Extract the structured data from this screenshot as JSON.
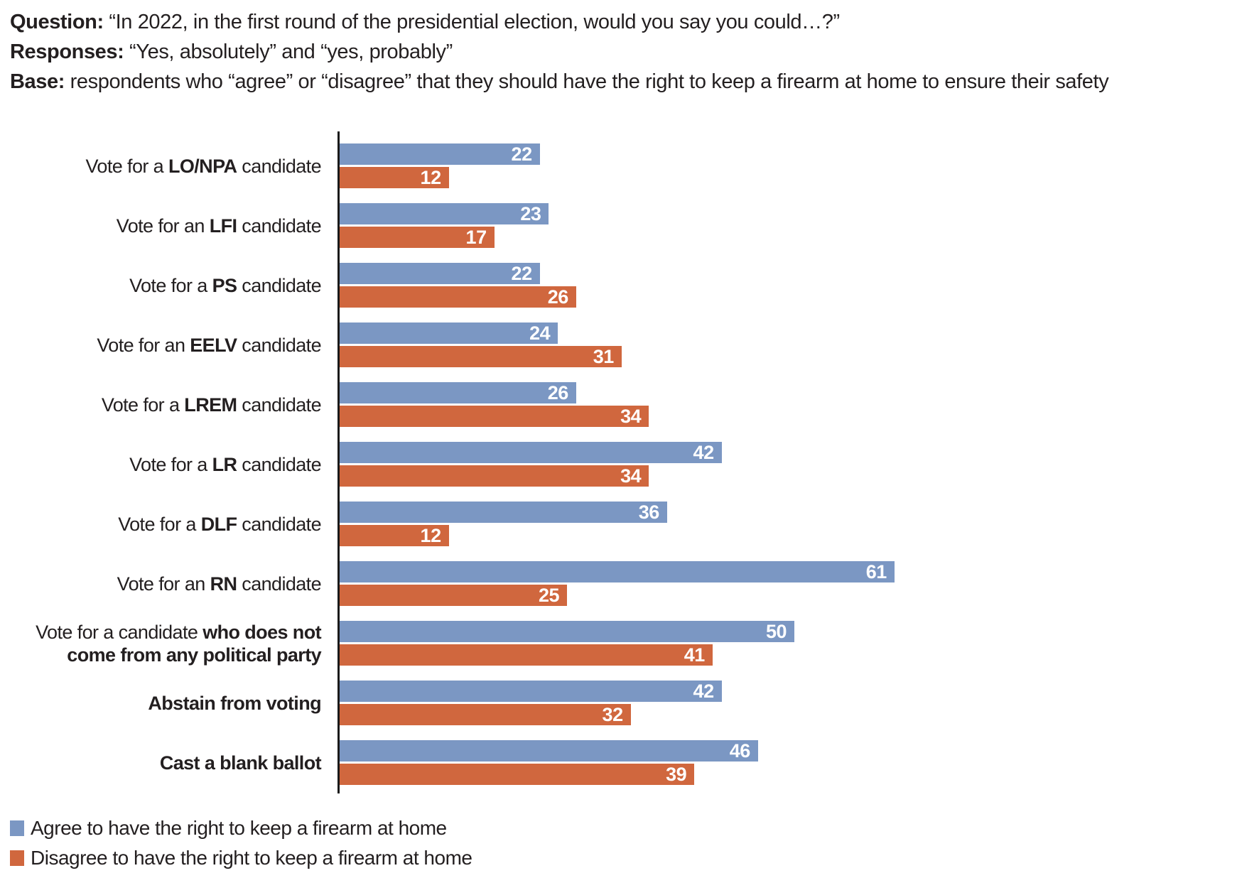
{
  "header": {
    "line1_label": "Question:",
    "line1_text": " “In 2022, in the first round of the presidential election, would you say you could…?”",
    "line2_label": "Responses:",
    "line2_text": " “Yes, absolutely” and “yes, probably”",
    "line3_label": "Base:",
    "line3_text": " respondents who “agree” or “disagree” that they should have the right to keep a firearm at home to ensure their safety"
  },
  "chart_data": {
    "type": "bar",
    "orientation": "horizontal",
    "title": "",
    "xlabel": "",
    "ylabel": "",
    "xlim": [
      0,
      65
    ],
    "grid": false,
    "legend_position": "bottom-left",
    "value_labels": "inside-end, white bold",
    "categories": [
      "Vote for a LO/NPA candidate",
      "Vote for an LFI candidate",
      "Vote for a PS candidate",
      "Vote for an EELV candidate",
      "Vote for a LREM candidate",
      "Vote for a LR candidate",
      "Vote for a DLF candidate",
      "Vote for an RN candidate",
      "Vote for a candidate who does not come from any political party",
      "Abstain from voting",
      "Cast a blank ballot"
    ],
    "category_label_parts": [
      {
        "pre": "Vote for a ",
        "bold": "LO/NPA",
        "post": " candidate"
      },
      {
        "pre": "Vote for an ",
        "bold": "LFI",
        "post": " candidate"
      },
      {
        "pre": "Vote for a ",
        "bold": "PS",
        "post": " candidate"
      },
      {
        "pre": "Vote for an ",
        "bold": "EELV",
        "post": " candidate"
      },
      {
        "pre": "Vote for a ",
        "bold": "LREM",
        "post": " candidate"
      },
      {
        "pre": "Vote for a ",
        "bold": "LR",
        "post": " candidate"
      },
      {
        "pre": "Vote for a ",
        "bold": "DLF",
        "post": " candidate"
      },
      {
        "pre": "Vote for an ",
        "bold": "RN",
        "post": " candidate"
      },
      {
        "pre": "Vote for a candidate ",
        "bold": "who does not come from any political party",
        "post": ""
      },
      {
        "pre": "",
        "bold": "Abstain from voting",
        "post": ""
      },
      {
        "pre": "",
        "bold": "Cast a blank ballot",
        "post": ""
      }
    ],
    "series": [
      {
        "name": "Agree to have the right to keep a firearm at home",
        "color": "#7b97c3",
        "values": [
          22,
          23,
          22,
          24,
          26,
          42,
          36,
          61,
          50,
          42,
          46
        ]
      },
      {
        "name": "Disagree to have the right to keep a firearm at home",
        "color": "#d0673e",
        "values": [
          12,
          17,
          26,
          31,
          34,
          34,
          12,
          25,
          41,
          32,
          39
        ]
      }
    ]
  }
}
